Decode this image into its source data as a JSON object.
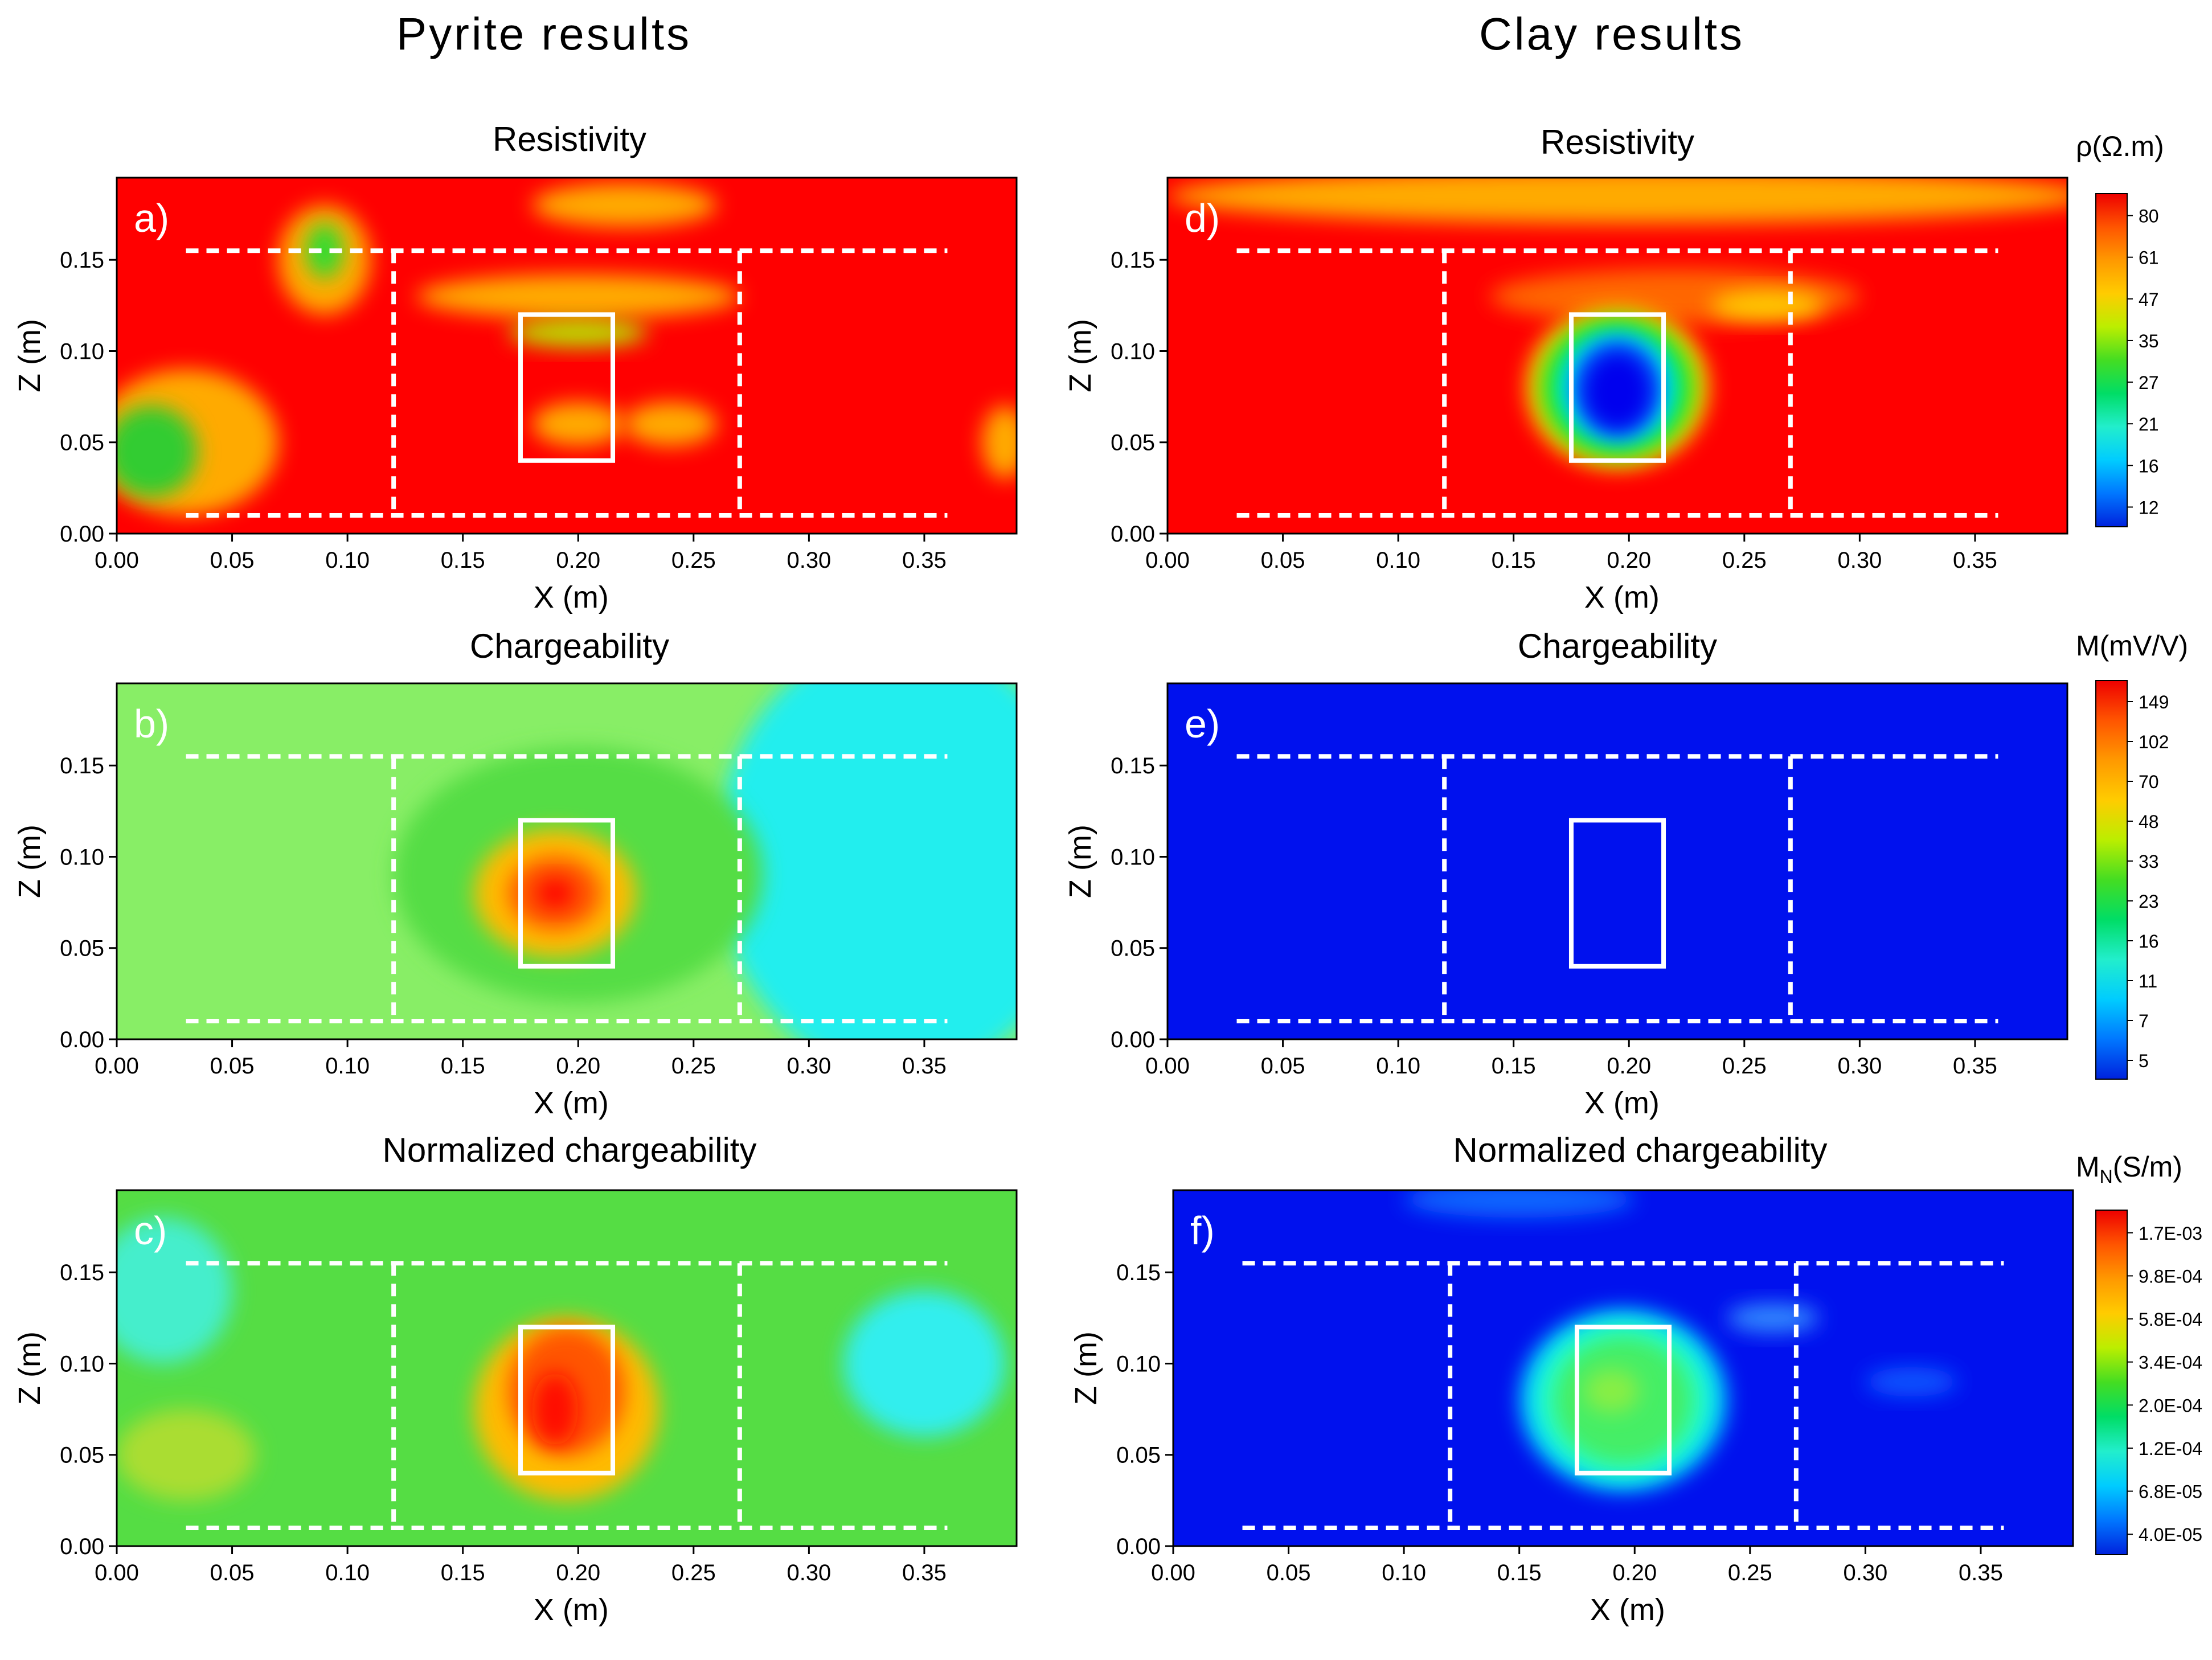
{
  "column_titles": {
    "left": "Pyrite results",
    "right": "Clay results"
  },
  "axis": {
    "xlabel": "X (m)",
    "ylabel": "Z (m)",
    "xticks": [
      "0.00",
      "0.05",
      "0.10",
      "0.15",
      "0.20",
      "0.25",
      "0.30",
      "0.35"
    ],
    "yticks": [
      "0.00",
      "0.05",
      "0.10",
      "0.15"
    ]
  },
  "colorbars": {
    "resistivity": {
      "title": "ρ(Ω.m)",
      "labels": [
        "80",
        "61",
        "47",
        "35",
        "27",
        "21",
        "16",
        "12"
      ]
    },
    "chargeability": {
      "title": "M(mV/V)",
      "labels": [
        "149",
        "102",
        "70",
        "48",
        "33",
        "23",
        "16",
        "11",
        "7",
        "5"
      ]
    },
    "normalized": {
      "title_main": "M",
      "title_sub": "N",
      "title_rest": "(S/m)",
      "labels": [
        "1.7E-03",
        "9.8E-04",
        "5.8E-04",
        "3.4E-04",
        "2.0E-04",
        "1.2E-04",
        "6.8E-05",
        "4.0E-05"
      ]
    }
  },
  "chart_data": [
    {
      "id": "a",
      "type": "heatmap",
      "title": "Resistivity",
      "panel_label": "a)",
      "xlabel": "X (m)",
      "ylabel": "Z (m)",
      "xlim": [
        0,
        0.39
      ],
      "ylim": [
        0,
        0.195
      ],
      "background": "#ff0000",
      "dashed_region": {
        "outer_x": [
          0.03,
          0.36
        ],
        "outer_z": [
          0.01,
          0.155
        ],
        "inner_x": [
          0.12,
          0.27
        ]
      },
      "target_box": {
        "x": [
          0.175,
          0.215
        ],
        "z": [
          0.04,
          0.12
        ]
      },
      "anomalies": [
        {
          "x": 0.09,
          "z": 0.15,
          "rx": 0.02,
          "rz": 0.03,
          "color": "#ffaa00"
        },
        {
          "x": 0.09,
          "z": 0.155,
          "rx": 0.008,
          "rz": 0.015,
          "color": "#33dd33"
        },
        {
          "x": 0.2,
          "z": 0.13,
          "rx": 0.07,
          "rz": 0.012,
          "color": "#ffaa00"
        },
        {
          "x": 0.2,
          "z": 0.11,
          "rx": 0.03,
          "rz": 0.008,
          "color": "#bbdd00"
        },
        {
          "x": 0.03,
          "z": 0.05,
          "rx": 0.04,
          "rz": 0.04,
          "color": "#ffaa00"
        },
        {
          "x": 0.015,
          "z": 0.045,
          "rx": 0.02,
          "rz": 0.025,
          "color": "#33cc33"
        },
        {
          "x": 0.2,
          "z": 0.06,
          "rx": 0.02,
          "rz": 0.012,
          "color": "#ffaa00"
        },
        {
          "x": 0.24,
          "z": 0.06,
          "rx": 0.02,
          "rz": 0.012,
          "color": "#ffaa00"
        },
        {
          "x": 0.22,
          "z": 0.18,
          "rx": 0.04,
          "rz": 0.012,
          "color": "#ffaa00"
        },
        {
          "x": 0.385,
          "z": 0.05,
          "rx": 0.01,
          "rz": 0.02,
          "color": "#ffaa00"
        }
      ]
    },
    {
      "id": "b",
      "type": "heatmap",
      "title": "Chargeability",
      "panel_label": "b)",
      "xlabel": "X (m)",
      "ylabel": "Z (m)",
      "xlim": [
        0,
        0.39
      ],
      "ylim": [
        0,
        0.195
      ],
      "background": "#88ee66",
      "dashed_region": {
        "outer_x": [
          0.03,
          0.36
        ],
        "outer_z": [
          0.01,
          0.155
        ],
        "inner_x": [
          0.12,
          0.27
        ]
      },
      "target_box": {
        "x": [
          0.175,
          0.215
        ],
        "z": [
          0.04,
          0.12
        ]
      },
      "anomalies": [
        {
          "x": 0.34,
          "z": 0.1,
          "rx": 0.08,
          "rz": 0.12,
          "color": "#22eeee"
        },
        {
          "x": 0.2,
          "z": 0.09,
          "rx": 0.08,
          "rz": 0.07,
          "color": "#55dd44"
        },
        {
          "x": 0.19,
          "z": 0.08,
          "rx": 0.035,
          "rz": 0.035,
          "color": "#ffbb00"
        },
        {
          "x": 0.19,
          "z": 0.08,
          "rx": 0.02,
          "rz": 0.02,
          "color": "#ff5500"
        },
        {
          "x": 0.19,
          "z": 0.08,
          "rx": 0.008,
          "rz": 0.008,
          "color": "#ff0000"
        }
      ]
    },
    {
      "id": "c",
      "type": "heatmap",
      "title": "Normalized chargeability",
      "panel_label": "c)",
      "xlabel": "X (m)",
      "ylabel": "Z (m)",
      "xlim": [
        0,
        0.39
      ],
      "ylim": [
        0,
        0.195
      ],
      "background": "#55dd44",
      "dashed_region": {
        "outer_x": [
          0.03,
          0.36
        ],
        "outer_z": [
          0.01,
          0.155
        ],
        "inner_x": [
          0.12,
          0.27
        ]
      },
      "target_box": {
        "x": [
          0.175,
          0.215
        ],
        "z": [
          0.04,
          0.12
        ]
      },
      "anomalies": [
        {
          "x": 0.02,
          "z": 0.14,
          "rx": 0.03,
          "rz": 0.04,
          "color": "#44eecc"
        },
        {
          "x": 0.35,
          "z": 0.1,
          "rx": 0.035,
          "rz": 0.04,
          "color": "#33eeee"
        },
        {
          "x": 0.03,
          "z": 0.05,
          "rx": 0.03,
          "rz": 0.025,
          "color": "#aadd33"
        },
        {
          "x": 0.195,
          "z": 0.075,
          "rx": 0.04,
          "rz": 0.05,
          "color": "#ffbb00"
        },
        {
          "x": 0.195,
          "z": 0.085,
          "rx": 0.025,
          "rz": 0.035,
          "color": "#ff5500"
        },
        {
          "x": 0.19,
          "z": 0.075,
          "rx": 0.01,
          "rz": 0.02,
          "color": "#ff1100"
        }
      ]
    },
    {
      "id": "d",
      "type": "heatmap",
      "title": "Resistivity",
      "panel_label": "d)",
      "xlabel": "X (m)",
      "ylabel": "Z (m)",
      "xlim": [
        0,
        0.39
      ],
      "ylim": [
        0,
        0.195
      ],
      "background": "#ff0000",
      "dashed_region": {
        "outer_x": [
          0.03,
          0.36
        ],
        "outer_z": [
          0.01,
          0.155
        ],
        "inner_x": [
          0.12,
          0.27
        ]
      },
      "target_box": {
        "x": [
          0.175,
          0.215
        ],
        "z": [
          0.04,
          0.12
        ]
      },
      "anomalies": [
        {
          "x": 0.2,
          "z": 0.185,
          "rx": 0.2,
          "rz": 0.015,
          "color": "#ffaa00"
        },
        {
          "x": 0.22,
          "z": 0.13,
          "rx": 0.08,
          "rz": 0.015,
          "color": "#ff6600"
        },
        {
          "x": 0.26,
          "z": 0.125,
          "rx": 0.025,
          "rz": 0.008,
          "color": "#ffcc00"
        },
        {
          "x": 0.195,
          "z": 0.08,
          "rx": 0.04,
          "rz": 0.045,
          "color": "#ffaa00"
        },
        {
          "x": 0.195,
          "z": 0.08,
          "rx": 0.035,
          "rz": 0.04,
          "color": "#88ee00"
        },
        {
          "x": 0.195,
          "z": 0.08,
          "rx": 0.03,
          "rz": 0.035,
          "color": "#00dd44"
        },
        {
          "x": 0.195,
          "z": 0.08,
          "rx": 0.025,
          "rz": 0.03,
          "color": "#00ffee"
        },
        {
          "x": 0.195,
          "z": 0.08,
          "rx": 0.02,
          "rz": 0.027,
          "color": "#0066ff"
        },
        {
          "x": 0.195,
          "z": 0.078,
          "rx": 0.015,
          "rz": 0.022,
          "color": "#0000ee"
        }
      ]
    },
    {
      "id": "e",
      "type": "heatmap",
      "title": "Chargeability",
      "panel_label": "e)",
      "xlabel": "X (m)",
      "ylabel": "Z (m)",
      "xlim": [
        0,
        0.39
      ],
      "ylim": [
        0,
        0.195
      ],
      "background": "#0011ee",
      "dashed_region": {
        "outer_x": [
          0.03,
          0.36
        ],
        "outer_z": [
          0.01,
          0.155
        ],
        "inner_x": [
          0.12,
          0.27
        ]
      },
      "target_box": {
        "x": [
          0.175,
          0.215
        ],
        "z": [
          0.04,
          0.12
        ]
      },
      "anomalies": []
    },
    {
      "id": "f",
      "type": "heatmap",
      "title": "Normalized chargeability",
      "panel_label": "f)",
      "xlabel": "X (m)",
      "ylabel": "Z (m)",
      "xlim": [
        0,
        0.39
      ],
      "ylim": [
        0,
        0.195
      ],
      "background": "#0011ee",
      "dashed_region": {
        "outer_x": [
          0.03,
          0.36
        ],
        "outer_z": [
          0.01,
          0.155
        ],
        "inner_x": [
          0.12,
          0.27
        ]
      },
      "target_box": {
        "x": [
          0.175,
          0.215
        ],
        "z": [
          0.04,
          0.12
        ]
      },
      "anomalies": [
        {
          "x": 0.15,
          "z": 0.19,
          "rx": 0.05,
          "rz": 0.01,
          "color": "#1166ff"
        },
        {
          "x": 0.26,
          "z": 0.125,
          "rx": 0.02,
          "rz": 0.008,
          "color": "#3388ff"
        },
        {
          "x": 0.32,
          "z": 0.09,
          "rx": 0.02,
          "rz": 0.008,
          "color": "#1155ff"
        },
        {
          "x": 0.195,
          "z": 0.08,
          "rx": 0.045,
          "rz": 0.05,
          "color": "#00ccff"
        },
        {
          "x": 0.195,
          "z": 0.08,
          "rx": 0.038,
          "rz": 0.043,
          "color": "#22ffcc"
        },
        {
          "x": 0.195,
          "z": 0.08,
          "rx": 0.03,
          "rz": 0.035,
          "color": "#44ee66"
        },
        {
          "x": 0.19,
          "z": 0.085,
          "rx": 0.012,
          "rz": 0.012,
          "color": "#88ee44"
        }
      ]
    }
  ]
}
